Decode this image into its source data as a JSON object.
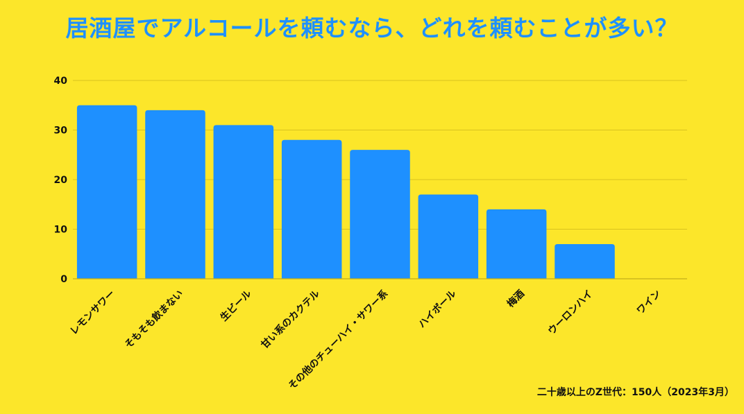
{
  "title": "居酒屋でアルコールを頼むなら、どれを頼むことが多い？",
  "footnote": "二十歳以上のZ世代：150人（2023年3月）",
  "colors": {
    "background": "#FCE62A",
    "bar": "#1E90FF",
    "title": "#1E90FF"
  },
  "chart_data": {
    "type": "bar",
    "categories": [
      "レモンサワー",
      "そもそも飲まない",
      "生ビール",
      "甘い系のカクテル",
      "その他のチューハイ・サワー系",
      "ハイボール",
      "梅酒",
      "ウーロンハイ",
      "ワイン"
    ],
    "values": [
      35,
      34,
      31,
      28,
      26,
      17,
      14,
      7,
      0
    ],
    "ylim": [
      0,
      40
    ],
    "yticks": [
      0,
      10,
      20,
      30,
      40
    ],
    "grid": true,
    "legend": "none"
  }
}
